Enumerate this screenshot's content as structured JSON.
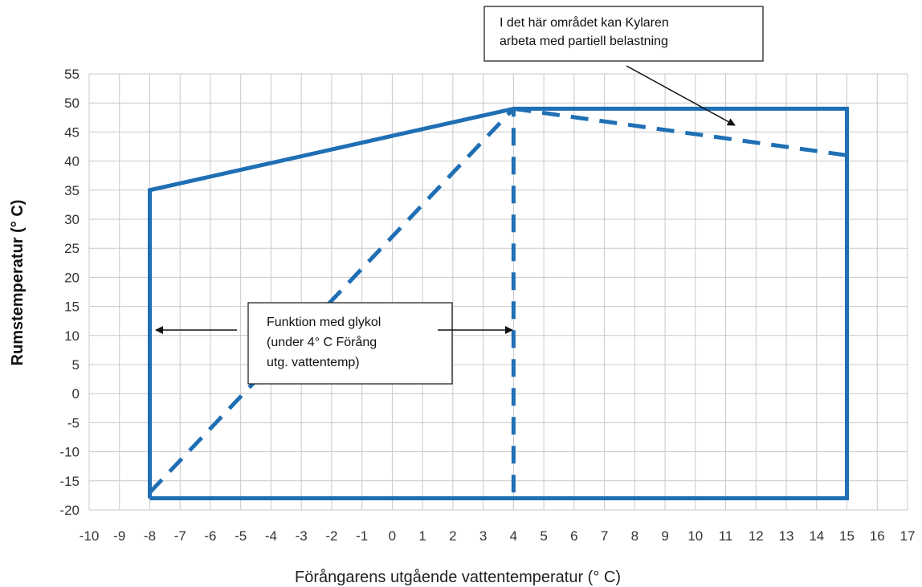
{
  "chart_data": {
    "type": "line",
    "xlabel": "Förångarens utgående vattentemperatur (° C)",
    "ylabel": "Rumstemperatur  (° C)",
    "xlim": [
      -10,
      17
    ],
    "ylim": [
      -20,
      55
    ],
    "x_ticks": [
      -10,
      -9,
      -8,
      -7,
      -6,
      -5,
      -4,
      -3,
      -2,
      -1,
      0,
      1,
      2,
      3,
      4,
      5,
      6,
      7,
      8,
      9,
      10,
      11,
      12,
      13,
      14,
      15,
      16,
      17
    ],
    "y_ticks": [
      55,
      50,
      45,
      40,
      35,
      30,
      25,
      20,
      15,
      10,
      5,
      0,
      -5,
      -10,
      -15,
      -20
    ],
    "grid": true,
    "series": [
      {
        "style": "solid",
        "color": "#1f6fb4",
        "points": [
          [
            -8,
            -18
          ],
          [
            -8,
            35
          ],
          [
            4,
            49
          ],
          [
            15,
            49
          ],
          [
            15,
            -18
          ],
          [
            -8,
            -18
          ]
        ]
      },
      {
        "style": "dashed",
        "color": "#1f6fb4",
        "points": [
          [
            -8,
            -17
          ],
          [
            4,
            49
          ]
        ]
      },
      {
        "style": "dashed",
        "color": "#1f6fb4",
        "points": [
          [
            4,
            -17
          ],
          [
            4,
            49
          ]
        ]
      },
      {
        "style": "dashed",
        "color": "#1f6fb4",
        "points": [
          [
            4,
            49
          ],
          [
            15,
            41
          ]
        ]
      }
    ],
    "annotations": [
      {
        "lines": [
          "I det här området kan Kylaren",
          "arbeta med partiell belastning"
        ]
      },
      {
        "lines": [
          "Funktion med glykol",
          "(under  4°  C  Förång",
          "utg. vattentemp)"
        ]
      }
    ]
  }
}
